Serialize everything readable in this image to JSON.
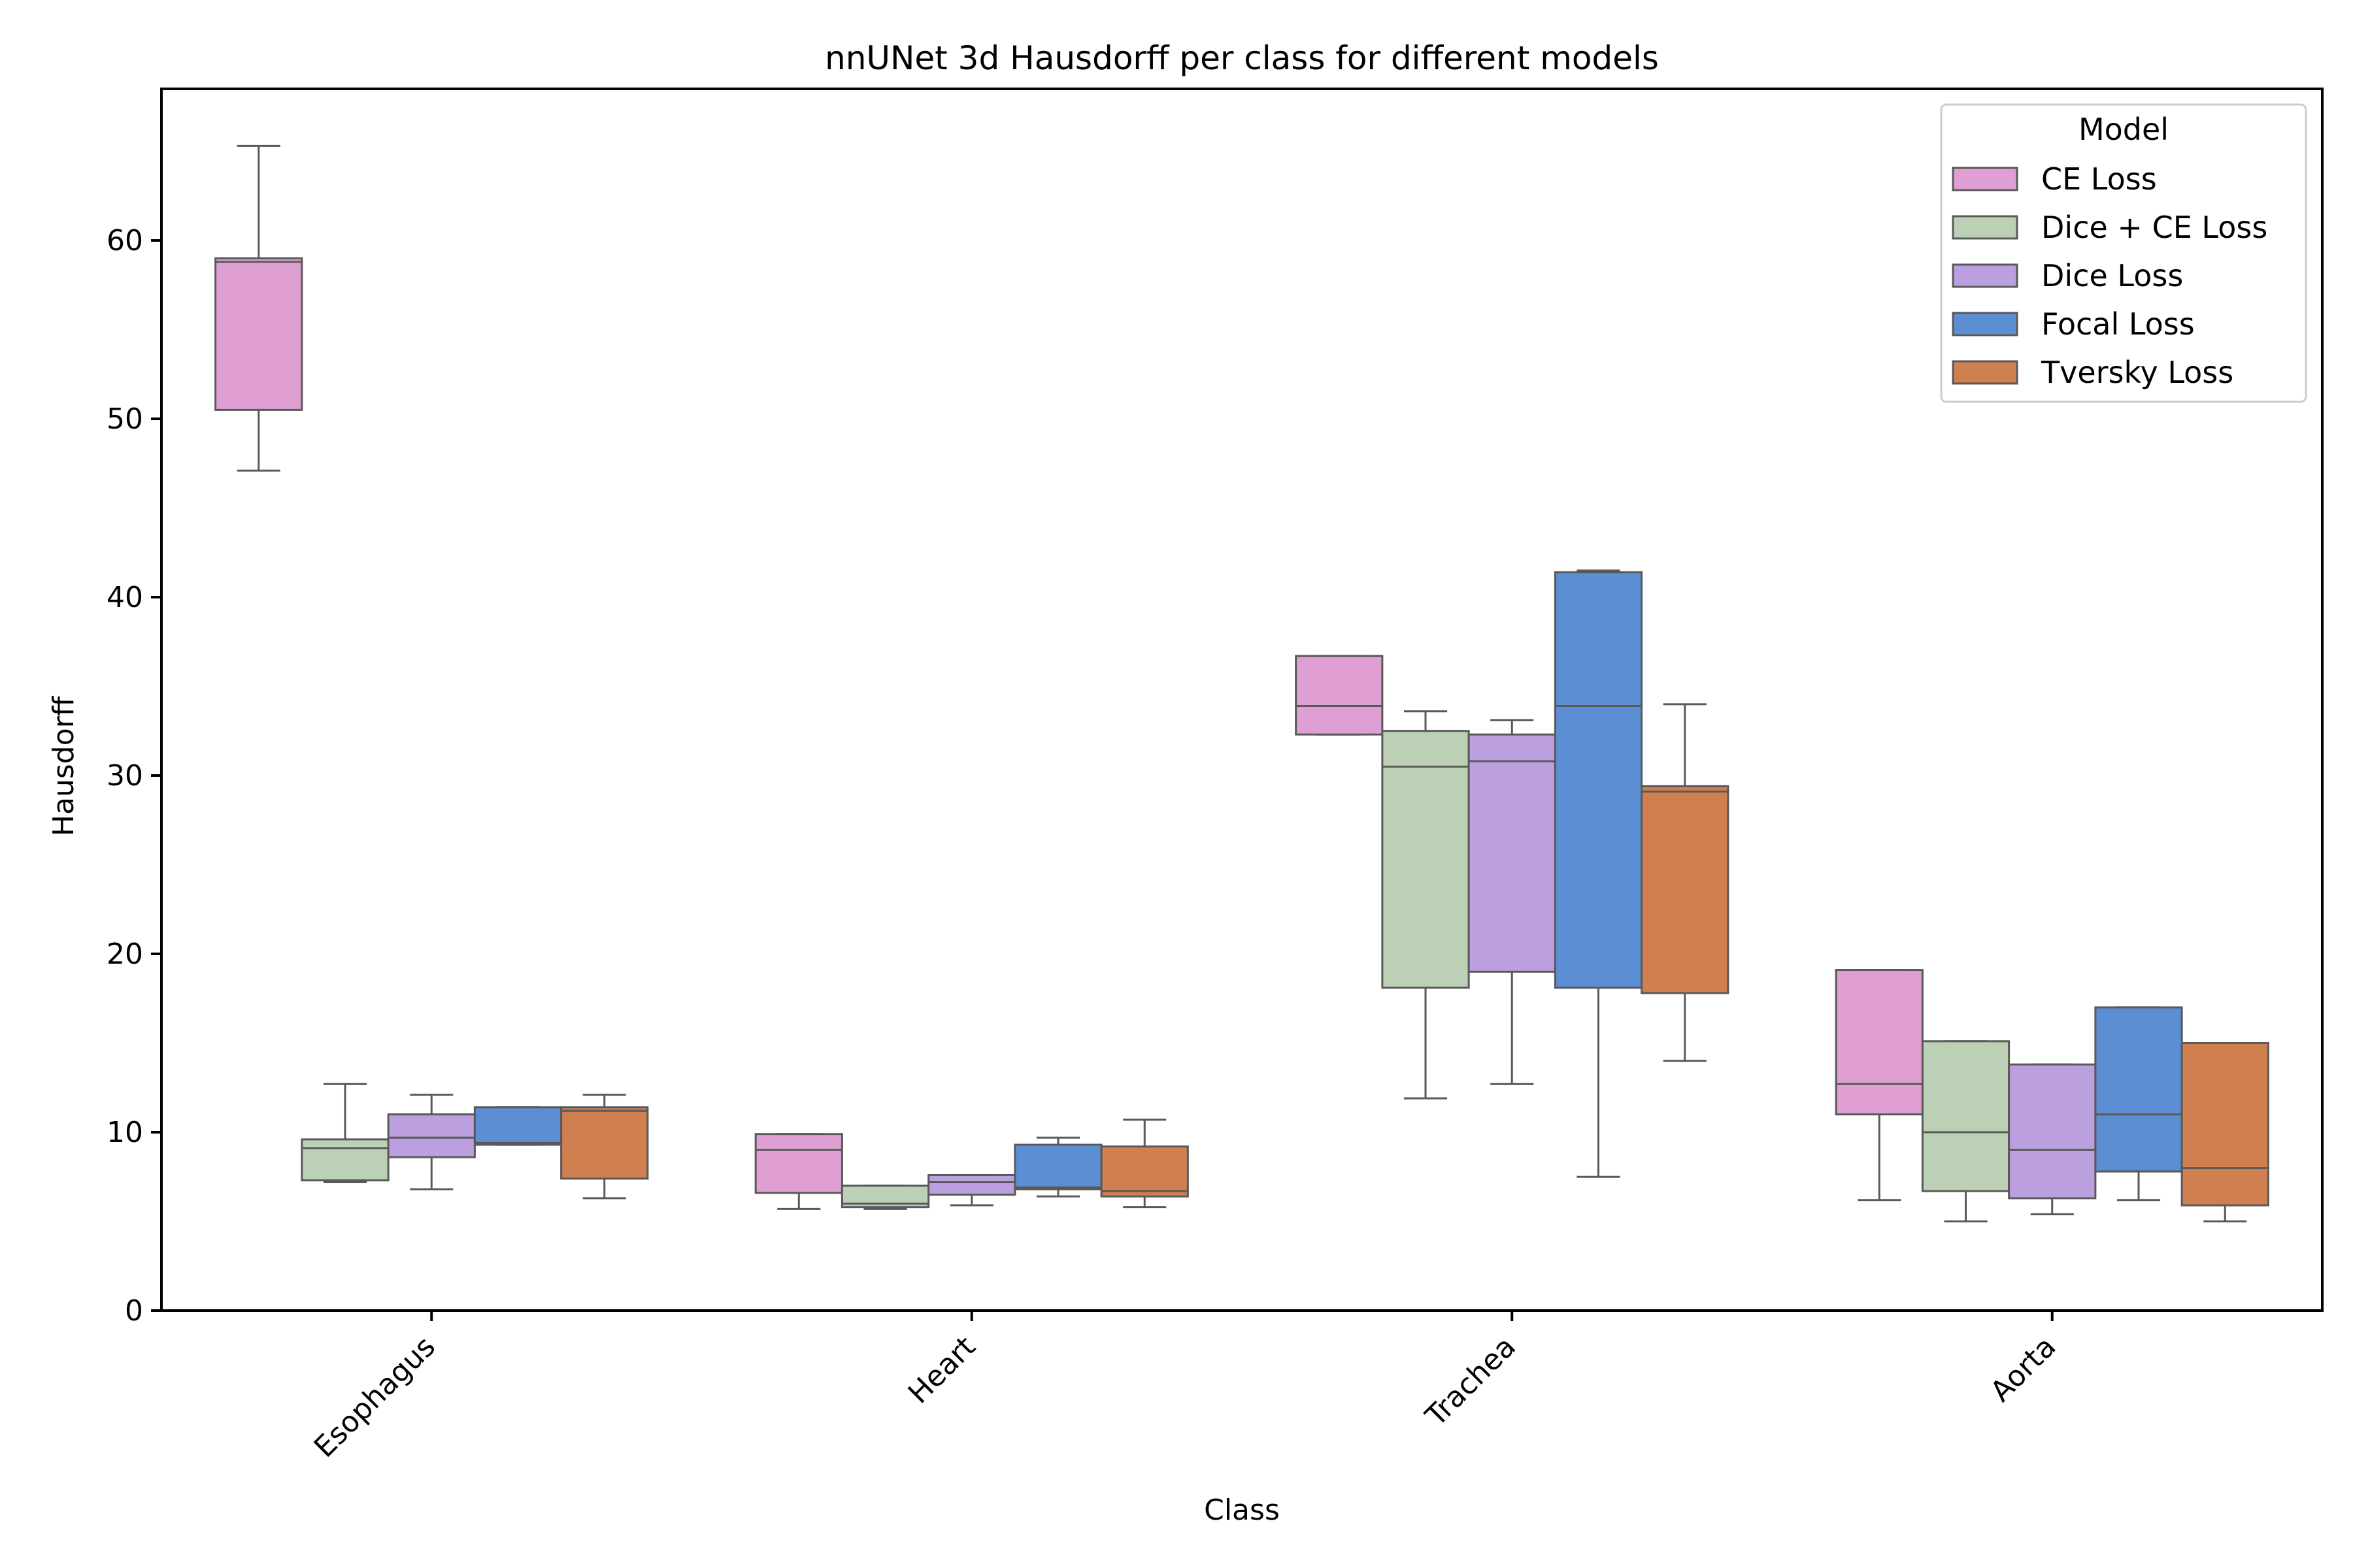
{
  "chart_data": {
    "type": "box",
    "title": "nnUNet 3d Hausdorff per class for different models",
    "xlabel": "Class",
    "ylabel": "Hausdorff",
    "ylim": [
      0,
      68.5
    ],
    "yticks": [
      0,
      10,
      20,
      30,
      40,
      50,
      60
    ],
    "categories": [
      "Esophagus",
      "Heart",
      "Trachea",
      "Aorta"
    ],
    "grid": false,
    "legend": {
      "title": "Model",
      "placement": "top-right"
    },
    "series": [
      {
        "name": "CE Loss",
        "color": "#e09fd2",
        "boxes": [
          {
            "whisker_low": 47.1,
            "q1": 50.5,
            "median": 58.8,
            "q3": 59.0,
            "whisker_high": 65.3
          },
          {
            "whisker_low": 5.7,
            "q1": 6.6,
            "median": 9.0,
            "q3": 9.9,
            "whisker_high": 9.9
          },
          {
            "whisker_low": 32.3,
            "q1": 32.3,
            "median": 33.9,
            "q3": 36.7,
            "whisker_high": 36.7
          },
          {
            "whisker_low": 6.2,
            "q1": 11.0,
            "median": 12.7,
            "q3": 19.1,
            "whisker_high": 19.1
          }
        ]
      },
      {
        "name": "Dice + CE Loss",
        "color": "#bcd0b5",
        "boxes": [
          {
            "whisker_low": 7.2,
            "q1": 7.3,
            "median": 9.1,
            "q3": 9.6,
            "whisker_high": 12.7
          },
          {
            "whisker_low": 5.7,
            "q1": 5.8,
            "median": 6.0,
            "q3": 7.0,
            "whisker_high": 7.0
          },
          {
            "whisker_low": 11.9,
            "q1": 18.1,
            "median": 30.5,
            "q3": 32.5,
            "whisker_high": 33.6
          },
          {
            "whisker_low": 5.0,
            "q1": 6.7,
            "median": 10.0,
            "q3": 15.1,
            "whisker_high": 15.1
          }
        ]
      },
      {
        "name": "Dice Loss",
        "color": "#bb9fdf",
        "boxes": [
          {
            "whisker_low": 6.8,
            "q1": 8.6,
            "median": 9.7,
            "q3": 11.0,
            "whisker_high": 12.1
          },
          {
            "whisker_low": 5.9,
            "q1": 6.5,
            "median": 7.2,
            "q3": 7.6,
            "whisker_high": 7.6
          },
          {
            "whisker_low": 12.7,
            "q1": 19.0,
            "median": 30.8,
            "q3": 32.3,
            "whisker_high": 33.1
          },
          {
            "whisker_low": 5.4,
            "q1": 6.3,
            "median": 9.0,
            "q3": 13.8,
            "whisker_high": 13.8
          }
        ]
      },
      {
        "name": "Focal Loss",
        "color": "#5b8ed3",
        "boxes": [
          {
            "whisker_low": 9.3,
            "q1": 9.3,
            "median": 9.4,
            "q3": 11.4,
            "whisker_high": 11.4
          },
          {
            "whisker_low": 6.4,
            "q1": 6.8,
            "median": 6.9,
            "q3": 9.3,
            "whisker_high": 9.7
          },
          {
            "whisker_low": 7.5,
            "q1": 18.1,
            "median": 33.9,
            "q3": 41.4,
            "whisker_high": 41.5
          },
          {
            "whisker_low": 6.2,
            "q1": 7.8,
            "median": 11.0,
            "q3": 17.0,
            "whisker_high": 17.0
          }
        ]
      },
      {
        "name": "Tversky Loss",
        "color": "#cf7f50",
        "boxes": [
          {
            "whisker_low": 6.3,
            "q1": 7.4,
            "median": 11.2,
            "q3": 11.4,
            "whisker_high": 12.1
          },
          {
            "whisker_low": 5.8,
            "q1": 6.4,
            "median": 6.7,
            "q3": 9.2,
            "whisker_high": 10.7
          },
          {
            "whisker_low": 14.0,
            "q1": 17.8,
            "median": 29.1,
            "q3": 29.4,
            "whisker_high": 34.0
          },
          {
            "whisker_low": 5.0,
            "q1": 5.9,
            "median": 8.0,
            "q3": 15.0,
            "whisker_high": 15.0
          }
        ]
      }
    ]
  }
}
